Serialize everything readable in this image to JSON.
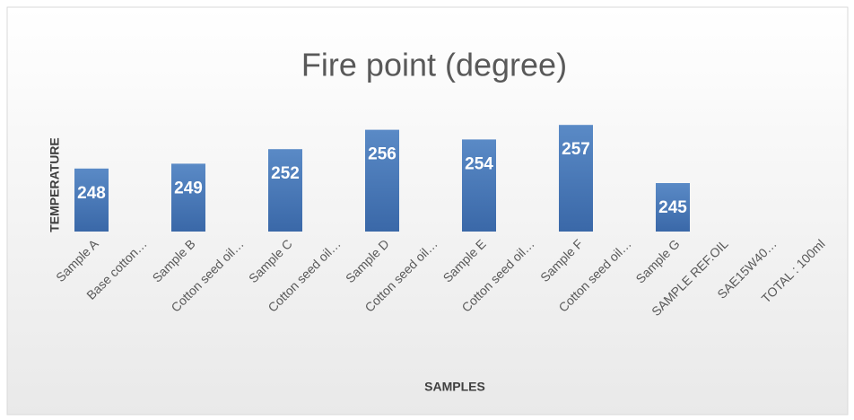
{
  "chart_data": {
    "type": "bar",
    "title": "Fire point (degree)",
    "x_label": "SAMPLES",
    "y_label": "TEMPERATURE",
    "categories": [
      "Sample A",
      "Base cotton…",
      "Sample B",
      "Cotton seed oil…",
      "Sample C",
      "Cotton seed oil…",
      "Sample D",
      "Cotton seed oil…",
      "Sample E",
      "Cotton seed oil…",
      "Sample F",
      "Cotton seed oil…",
      "Sample G",
      "SAMPLE REF.OIL",
      "SAE15W40…",
      "TOTAL : 100ml"
    ],
    "values": [
      248,
      null,
      249,
      null,
      252,
      null,
      256,
      null,
      254,
      null,
      257,
      null,
      245,
      null,
      null,
      null
    ],
    "color": "#4f81bd",
    "ylim": [
      235,
      260
    ],
    "grid": false
  }
}
